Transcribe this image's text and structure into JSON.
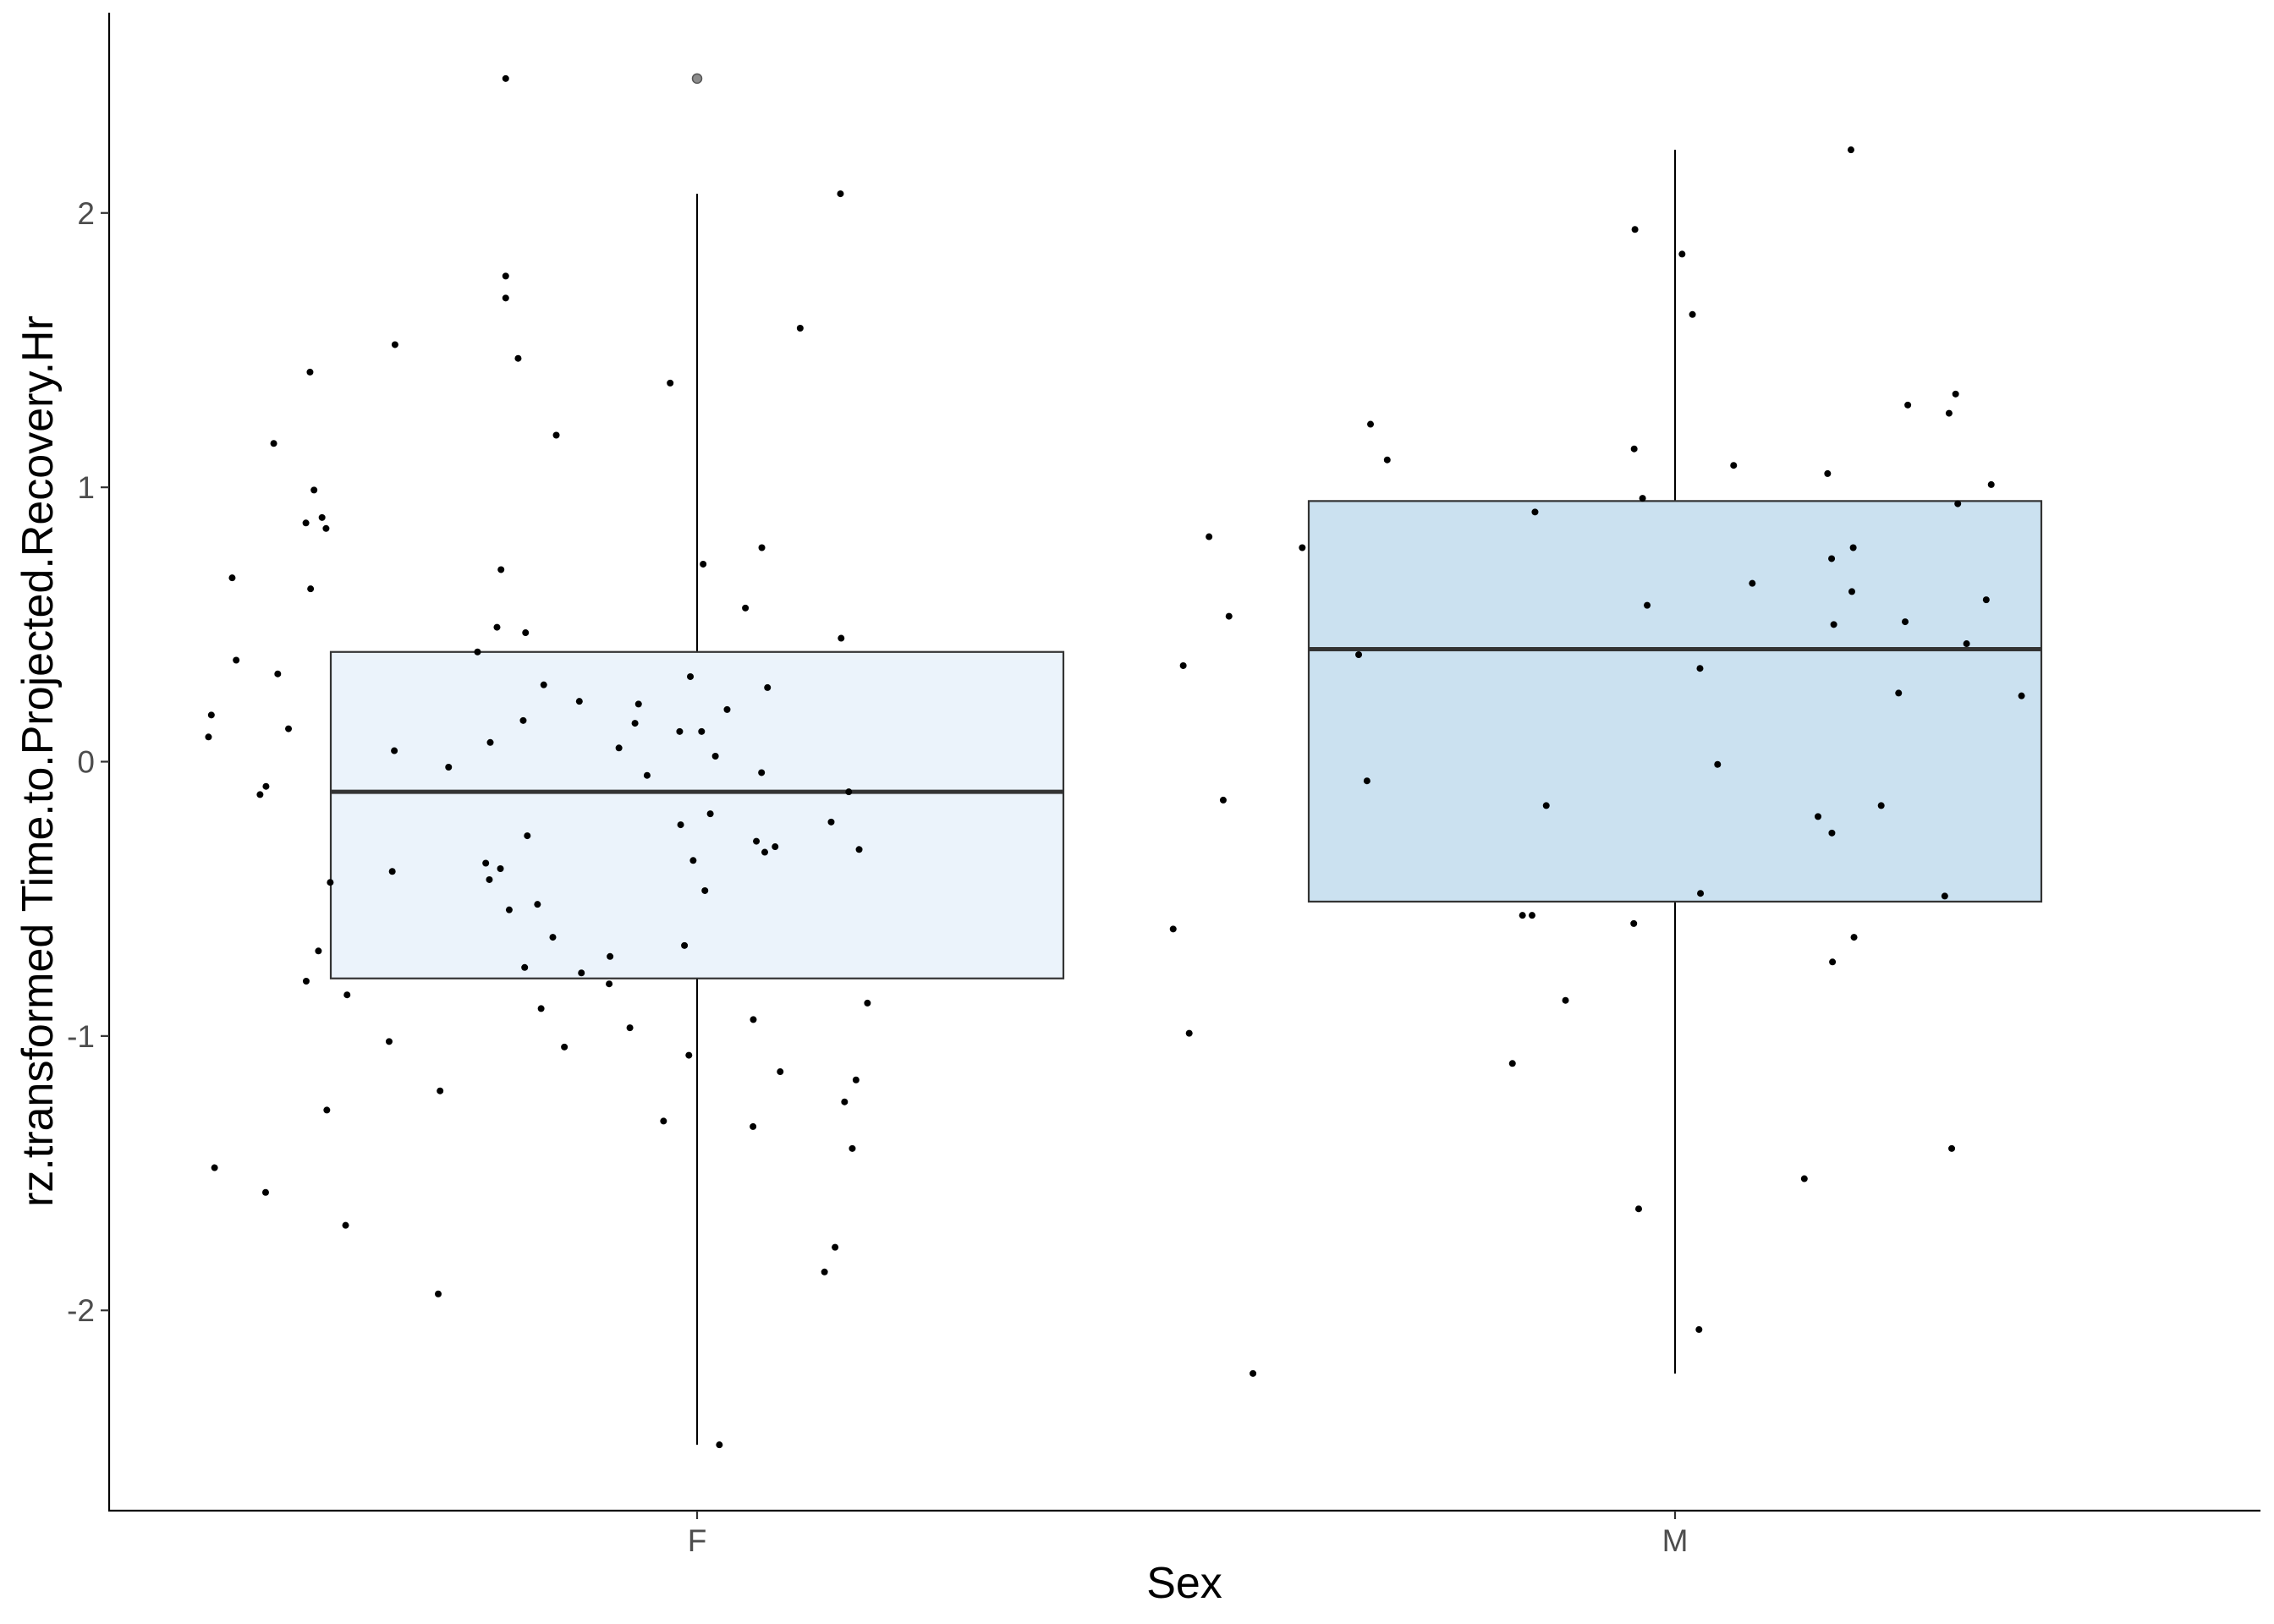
{
  "chart_data": {
    "type": "box",
    "title": "",
    "xlabel": "Sex",
    "ylabel": "rz.transformed Time.to.Projected.Recovery.Hr",
    "categories": [
      "F",
      "M"
    ],
    "ylim": [
      -2.73,
      2.73
    ],
    "yticks": [
      -2,
      -1,
      0,
      1,
      2
    ],
    "ytick_labels": [
      "-2",
      "-1",
      "0",
      "1",
      "2"
    ],
    "grid": false,
    "legend": "none",
    "boxes": [
      {
        "name": "F",
        "fill": "#ebf3fb",
        "q1": -0.79,
        "median": -0.11,
        "q3": 0.4,
        "whisker_low": -2.49,
        "whisker_high": 2.07,
        "outliers": [
          2.49
        ]
      },
      {
        "name": "M",
        "fill": "#cbe1f0",
        "q1": -0.51,
        "median": 0.41,
        "q3": 0.95,
        "whisker_low": -2.23,
        "whisker_high": 2.23,
        "outliers": []
      }
    ],
    "points": [
      {
        "x": 0.8043,
        "y": 2.49
      },
      {
        "x": 1.1466,
        "y": 2.07
      },
      {
        "x": 0.8043,
        "y": 1.77
      },
      {
        "x": 0.8043,
        "y": 1.69
      },
      {
        "x": 1.1054,
        "y": 1.58
      },
      {
        "x": 0.6911,
        "y": 1.52
      },
      {
        "x": 0.817,
        "y": 1.47
      },
      {
        "x": 0.6042,
        "y": 1.42
      },
      {
        "x": 0.9725,
        "y": 1.38
      },
      {
        "x": 0.856,
        "y": 1.19
      },
      {
        "x": 0.5671,
        "y": 1.16
      },
      {
        "x": 0.6083,
        "y": 0.99
      },
      {
        "x": 0.6165,
        "y": 0.89
      },
      {
        "x": 0.6,
        "y": 0.87
      },
      {
        "x": 0.6206,
        "y": 0.85
      },
      {
        "x": 1.0662,
        "y": 0.78
      },
      {
        "x": 1.0062,
        "y": 0.72
      },
      {
        "x": 0.7995,
        "y": 0.7
      },
      {
        "x": 0.5246,
        "y": 0.67
      },
      {
        "x": 0.6048,
        "y": 0.63
      },
      {
        "x": 1.0494,
        "y": 0.56
      },
      {
        "x": 0.7954,
        "y": 0.49
      },
      {
        "x": 0.8246,
        "y": 0.47
      },
      {
        "x": 1.1473,
        "y": 0.45
      },
      {
        "x": 0.7755,
        "y": 0.4
      },
      {
        "x": 0.5287,
        "y": 0.37
      },
      {
        "x": 0.5712,
        "y": 0.32
      },
      {
        "x": 0.9931,
        "y": 0.31
      },
      {
        "x": 0.8432,
        "y": 0.28
      },
      {
        "x": 1.072,
        "y": 0.27
      },
      {
        "x": 0.8796,
        "y": 0.22
      },
      {
        "x": 0.9401,
        "y": 0.21
      },
      {
        "x": 1.0307,
        "y": 0.19
      },
      {
        "x": 0.5033,
        "y": 0.17
      },
      {
        "x": 0.8222,
        "y": 0.15
      },
      {
        "x": 0.9365,
        "y": 0.14
      },
      {
        "x": 0.5822,
        "y": 0.12
      },
      {
        "x": 1.0046,
        "y": 0.11
      },
      {
        "x": 0.9822,
        "y": 0.11
      },
      {
        "x": 0.5004,
        "y": 0.09
      },
      {
        "x": 0.7885,
        "y": 0.07
      },
      {
        "x": 0.9201,
        "y": 0.05
      },
      {
        "x": 0.6904,
        "y": 0.04
      },
      {
        "x": 1.0187,
        "y": 0.02
      },
      {
        "x": 0.7459,
        "y": -0.02
      },
      {
        "x": 1.0659,
        "y": -0.04
      },
      {
        "x": 0.9489,
        "y": -0.05
      },
      {
        "x": 0.5592,
        "y": -0.09
      },
      {
        "x": 0.5531,
        "y": -0.12
      },
      {
        "x": 1.1551,
        "y": -0.11
      },
      {
        "x": 1.0135,
        "y": -0.19
      },
      {
        "x": 1.1371,
        "y": -0.22
      },
      {
        "x": 0.9832,
        "y": -0.23
      },
      {
        "x": 0.8264,
        "y": -0.27
      },
      {
        "x": 1.0606,
        "y": -0.29
      },
      {
        "x": 1.0798,
        "y": -0.31
      },
      {
        "x": 1.0692,
        "y": -0.33
      },
      {
        "x": 1.1657,
        "y": -0.32
      },
      {
        "x": 0.996,
        "y": -0.36
      },
      {
        "x": 0.7839,
        "y": -0.37
      },
      {
        "x": 0.7989,
        "y": -0.39
      },
      {
        "x": 0.6883,
        "y": -0.4
      },
      {
        "x": 0.7876,
        "y": -0.43
      },
      {
        "x": 0.6249,
        "y": -0.44
      },
      {
        "x": 1.008,
        "y": -0.47
      },
      {
        "x": 0.8079,
        "y": -0.54
      },
      {
        "x": 0.8368,
        "y": -0.52
      },
      {
        "x": 0.8525,
        "y": -0.64
      },
      {
        "x": 0.8237,
        "y": -0.75
      },
      {
        "x": 0.9871,
        "y": -0.67
      },
      {
        "x": 0.6003,
        "y": -0.8
      },
      {
        "x": 0.6128,
        "y": -0.69
      },
      {
        "x": 0.911,
        "y": -0.71
      },
      {
        "x": 0.8817,
        "y": -0.77
      },
      {
        "x": 0.9101,
        "y": -0.81
      },
      {
        "x": 0.6421,
        "y": -0.85
      },
      {
        "x": 0.8405,
        "y": -0.9
      },
      {
        "x": 1.1742,
        "y": -0.88
      },
      {
        "x": 0.9313,
        "y": -0.97
      },
      {
        "x": 1.0575,
        "y": -0.94
      },
      {
        "x": 0.6851,
        "y": -1.02
      },
      {
        "x": 0.8643,
        "y": -1.04
      },
      {
        "x": 0.9916,
        "y": -1.07
      },
      {
        "x": 1.085,
        "y": -1.13
      },
      {
        "x": 0.6214,
        "y": -1.27
      },
      {
        "x": 0.7372,
        "y": -1.2
      },
      {
        "x": 1.1625,
        "y": -1.16
      },
      {
        "x": 1.1508,
        "y": -1.24
      },
      {
        "x": 0.9657,
        "y": -1.31
      },
      {
        "x": 1.0572,
        "y": -1.33
      },
      {
        "x": 0.5066,
        "y": -1.48
      },
      {
        "x": 0.7353,
        "y": -1.94
      },
      {
        "x": 0.5588,
        "y": -1.57
      },
      {
        "x": 1.1587,
        "y": -1.41
      },
      {
        "x": 0.6406,
        "y": -1.69
      },
      {
        "x": 1.1411,
        "y": -1.77
      },
      {
        "x": 1.1303,
        "y": -1.86
      },
      {
        "x": 1.0228,
        "y": -2.49
      },
      {
        "x": 2.1799,
        "y": 2.23
      },
      {
        "x": 1.959,
        "y": 1.94
      },
      {
        "x": 2.0072,
        "y": 1.85
      },
      {
        "x": 2.0178,
        "y": 1.63
      },
      {
        "x": 2.238,
        "y": 1.3
      },
      {
        "x": 2.2869,
        "y": 1.34
      },
      {
        "x": 2.2802,
        "y": 1.27
      },
      {
        "x": 1.6886,
        "y": 1.23
      },
      {
        "x": 1.9582,
        "y": 1.14
      },
      {
        "x": 1.7057,
        "y": 1.1
      },
      {
        "x": 2.0599,
        "y": 1.08
      },
      {
        "x": 2.156,
        "y": 1.05
      },
      {
        "x": 2.3233,
        "y": 1.01
      },
      {
        "x": 1.9668,
        "y": 0.96
      },
      {
        "x": 2.2891,
        "y": 0.94
      },
      {
        "x": 1.8568,
        "y": 0.91
      },
      {
        "x": 1.5235,
        "y": 0.82
      },
      {
        "x": 1.6188,
        "y": 0.78
      },
      {
        "x": 2.1822,
        "y": 0.78
      },
      {
        "x": 2.1601,
        "y": 0.74
      },
      {
        "x": 2.079,
        "y": 0.65
      },
      {
        "x": 2.1808,
        "y": 0.62
      },
      {
        "x": 2.3182,
        "y": 0.59
      },
      {
        "x": 1.9715,
        "y": 0.57
      },
      {
        "x": 1.5439,
        "y": 0.53
      },
      {
        "x": 2.2353,
        "y": 0.51
      },
      {
        "x": 2.1623,
        "y": 0.5
      },
      {
        "x": 2.2981,
        "y": 0.43
      },
      {
        "x": 1.6765,
        "y": 0.39
      },
      {
        "x": 1.4971,
        "y": 0.35
      },
      {
        "x": 2.0255,
        "y": 0.34
      },
      {
        "x": 2.2286,
        "y": 0.25
      },
      {
        "x": 2.3543,
        "y": 0.24
      },
      {
        "x": 2.0435,
        "y": -0.01
      },
      {
        "x": 1.685,
        "y": -0.07
      },
      {
        "x": 1.538,
        "y": -0.14
      },
      {
        "x": 1.8683,
        "y": -0.16
      },
      {
        "x": 2.2108,
        "y": -0.16
      },
      {
        "x": 2.1462,
        "y": -0.2
      },
      {
        "x": 2.1604,
        "y": -0.26
      },
      {
        "x": 2.026,
        "y": -0.48
      },
      {
        "x": 2.2758,
        "y": -0.49
      },
      {
        "x": 1.844,
        "y": -0.56
      },
      {
        "x": 1.8538,
        "y": -0.56
      },
      {
        "x": 1.9578,
        "y": -0.59
      },
      {
        "x": 1.4868,
        "y": -0.61
      },
      {
        "x": 2.183,
        "y": -0.64
      },
      {
        "x": 2.161,
        "y": -0.73
      },
      {
        "x": 1.888,
        "y": -0.87
      },
      {
        "x": 1.5032,
        "y": -0.99
      },
      {
        "x": 1.8337,
        "y": -1.1
      },
      {
        "x": 2.2829,
        "y": -1.41
      },
      {
        "x": 2.1322,
        "y": -1.52
      },
      {
        "x": 1.9628,
        "y": -1.63
      },
      {
        "x": 2.0245,
        "y": -2.07
      },
      {
        "x": 1.5684,
        "y": -2.23
      }
    ]
  }
}
